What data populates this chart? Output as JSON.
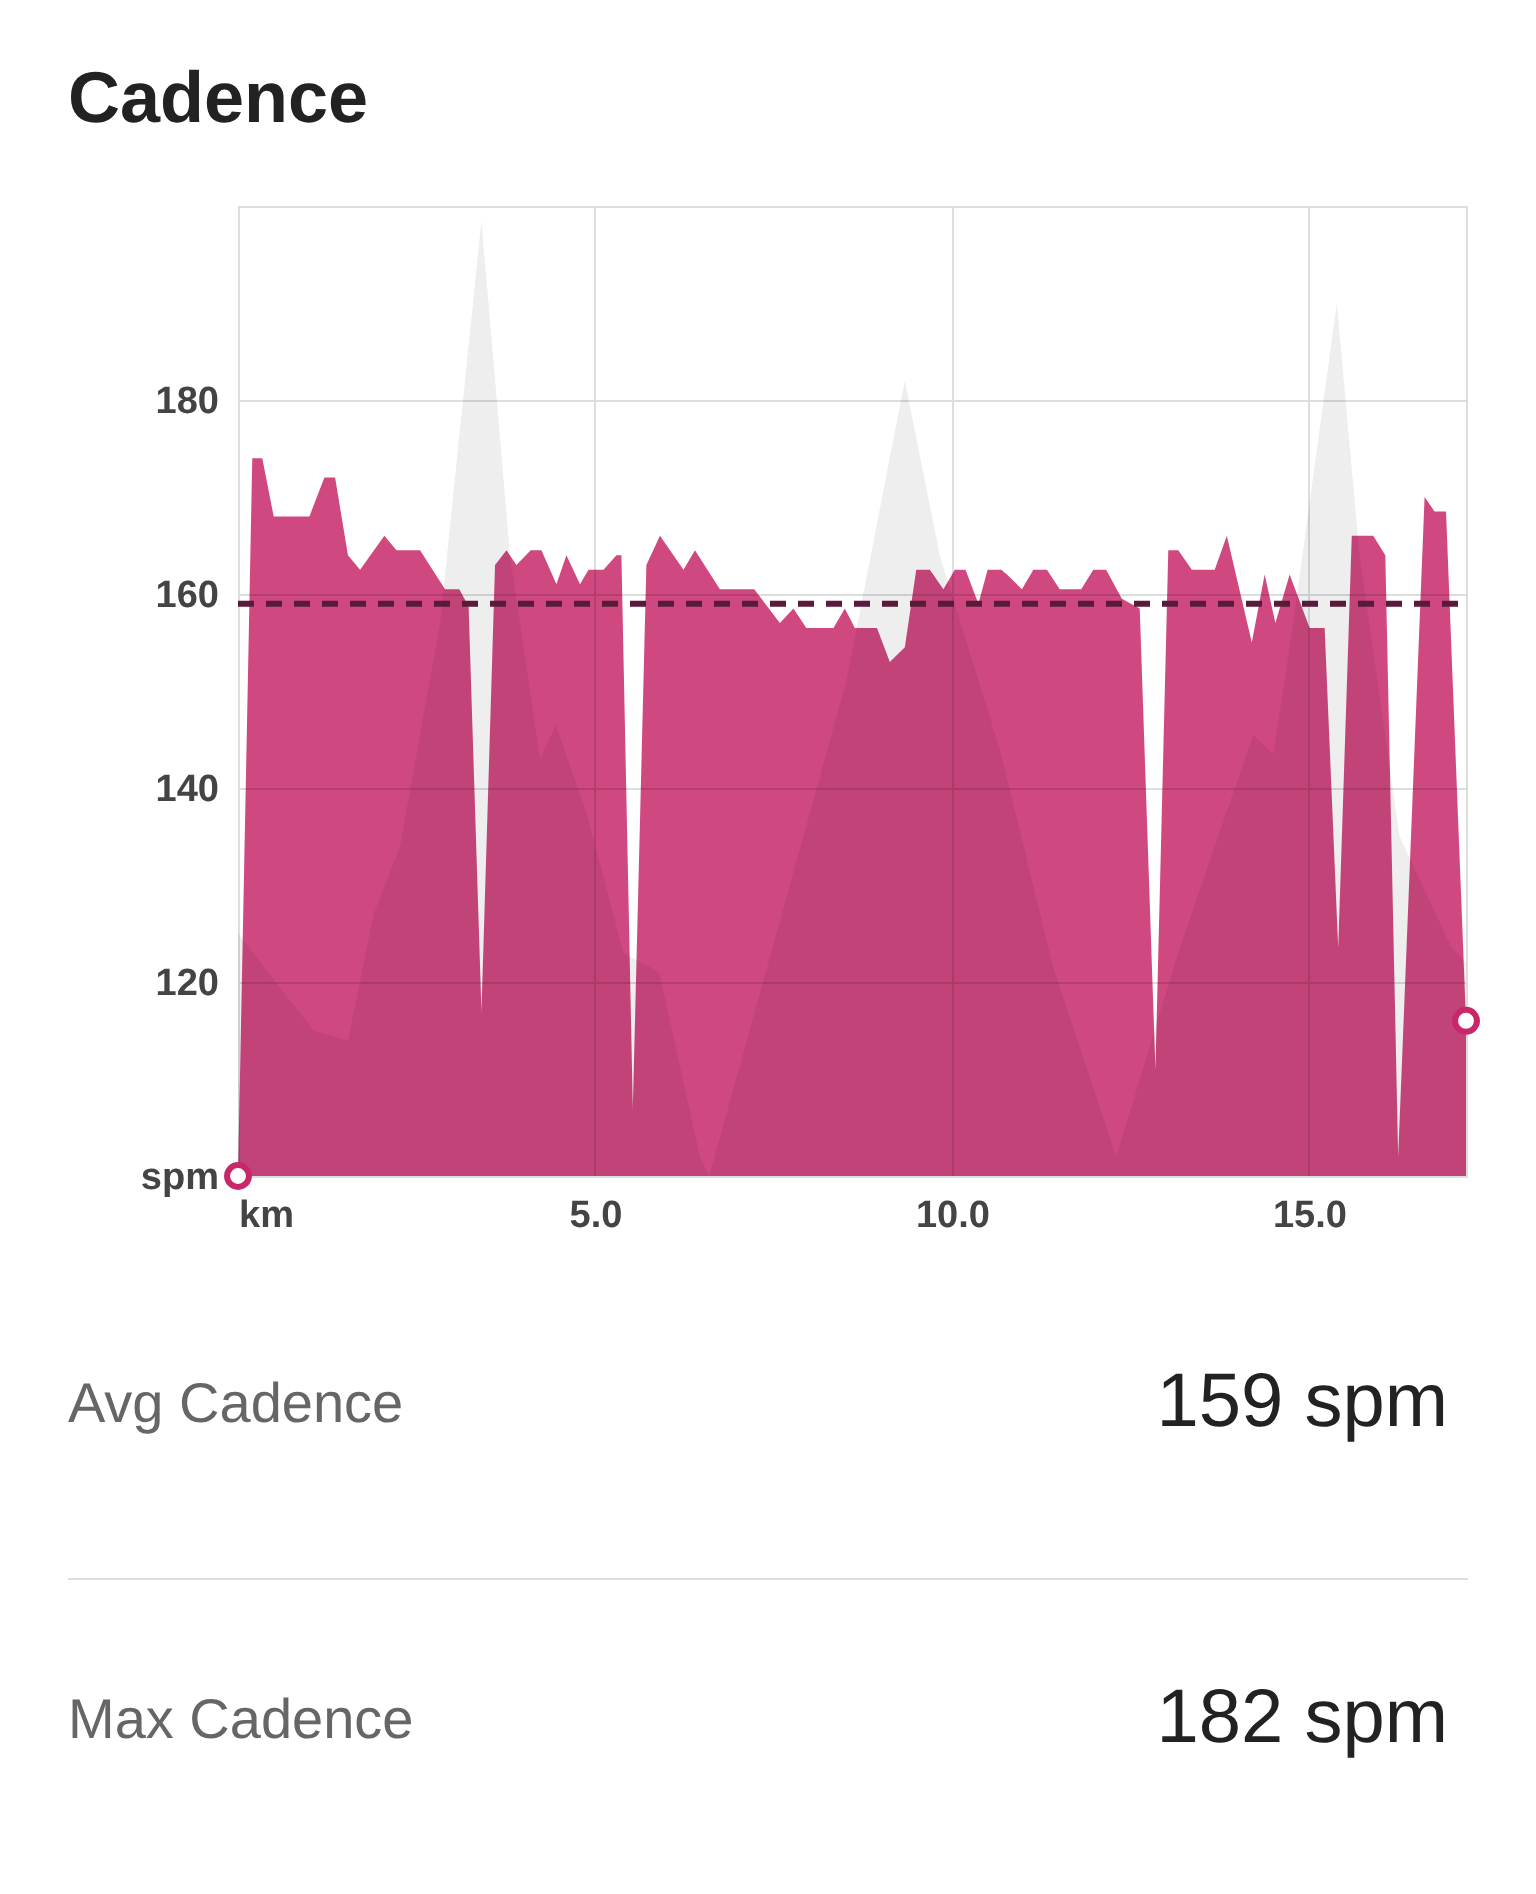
{
  "chart_data": {
    "type": "area",
    "title": "Cadence",
    "xlim": [
      0,
      17.2
    ],
    "xticks": [
      {
        "value": 0,
        "label": "km"
      },
      {
        "value": 5,
        "label": "5.0"
      },
      {
        "value": 10,
        "label": "10.0"
      },
      {
        "value": 15,
        "label": "15.0"
      }
    ],
    "ylim": [
      100,
      200
    ],
    "yticks": [
      {
        "value": 100,
        "label": "spm"
      },
      120,
      140,
      160,
      180,
      {
        "value": 200,
        "label": null
      }
    ],
    "grid": true,
    "series": [
      {
        "color": "#c8286a",
        "x": [
          0,
          0.2,
          0.34,
          0.5,
          1.0,
          1.21,
          1.36,
          1.54,
          1.71,
          2.05,
          2.22,
          2.55,
          2.9,
          3.1,
          3.23,
          3.41,
          3.6,
          3.76,
          3.9,
          4.1,
          4.25,
          4.46,
          4.6,
          4.79,
          4.91,
          5.12,
          5.3,
          5.37,
          5.53,
          5.72,
          5.91,
          6.24,
          6.4,
          6.75,
          7.23,
          7.59,
          7.78,
          7.96,
          8.34,
          8.5,
          8.64,
          8.95,
          9.13,
          9.34,
          9.5,
          9.69,
          9.88,
          10.04,
          10.19,
          10.37,
          10.5,
          10.69,
          10.77,
          10.98,
          11.14,
          11.33,
          11.51,
          11.81,
          11.98,
          12.16,
          12.38,
          12.63,
          12.85,
          13.03,
          13.17,
          13.36,
          13.68,
          13.85,
          14.2,
          14.38,
          14.53,
          14.73,
          15.01,
          15.22,
          15.41,
          15.6,
          15.9,
          16.07,
          16.25,
          16.62,
          16.76,
          16.92,
          17.2
        ],
        "values": [
          100,
          174,
          174,
          168,
          168,
          172,
          172,
          164,
          162.5,
          166,
          164.5,
          164.5,
          160.5,
          160.5,
          158.7,
          117,
          163,
          164.5,
          163,
          164.5,
          164.5,
          161,
          164,
          161,
          162.5,
          162.5,
          164,
          164,
          107,
          163,
          166,
          162.5,
          164.5,
          160.5,
          160.5,
          157,
          158.5,
          156.5,
          156.5,
          158.5,
          156.5,
          156.5,
          153,
          154.5,
          162.5,
          162.5,
          160.5,
          162.5,
          162.5,
          159,
          162.5,
          162.5,
          162,
          160.5,
          162.5,
          162.5,
          160.5,
          160.5,
          162.5,
          162.5,
          159.5,
          158.5,
          111,
          164.5,
          164.5,
          162.5,
          162.5,
          166,
          155,
          162,
          157,
          162,
          156.5,
          156.5,
          123.5,
          166,
          166,
          164,
          102,
          170,
          168.5,
          168.5,
          116
        ]
      },
      {
        "color": "#ebebeb",
        "x": [
          0,
          1.06,
          1.54,
          1.9,
          2.27,
          2.83,
          3.41,
          3.81,
          4.23,
          4.45,
          4.88,
          5.4,
          5.9,
          6.47,
          6.6,
          8.52,
          9.34,
          9.83,
          10.67,
          11.42,
          12.3,
          13.19,
          14.22,
          14.5,
          14.78,
          15.39,
          15.71,
          16.27,
          17.0,
          17.2
        ],
        "values": [
          125,
          115,
          114,
          127,
          134,
          157,
          198.5,
          164,
          143,
          146.5,
          137.5,
          123,
          121,
          102,
          100,
          151,
          182,
          164,
          144,
          121.5,
          102,
          123.5,
          145.5,
          143.5,
          157,
          190,
          164,
          135,
          123.5,
          122
        ]
      },
      {
        "type": "scatter",
        "marker": "circle",
        "color": "#c8286a",
        "x": [
          0,
          17.2
        ],
        "values": [
          100,
          116
        ]
      }
    ],
    "ref_lines": [
      {
        "axis": "y",
        "value": 159,
        "color": "#5a1a3a",
        "line_style": "dashed"
      }
    ],
    "annotations": [
      "Avg Cadence",
      "159 spm",
      "Max Cadence",
      "182 spm"
    ]
  }
}
